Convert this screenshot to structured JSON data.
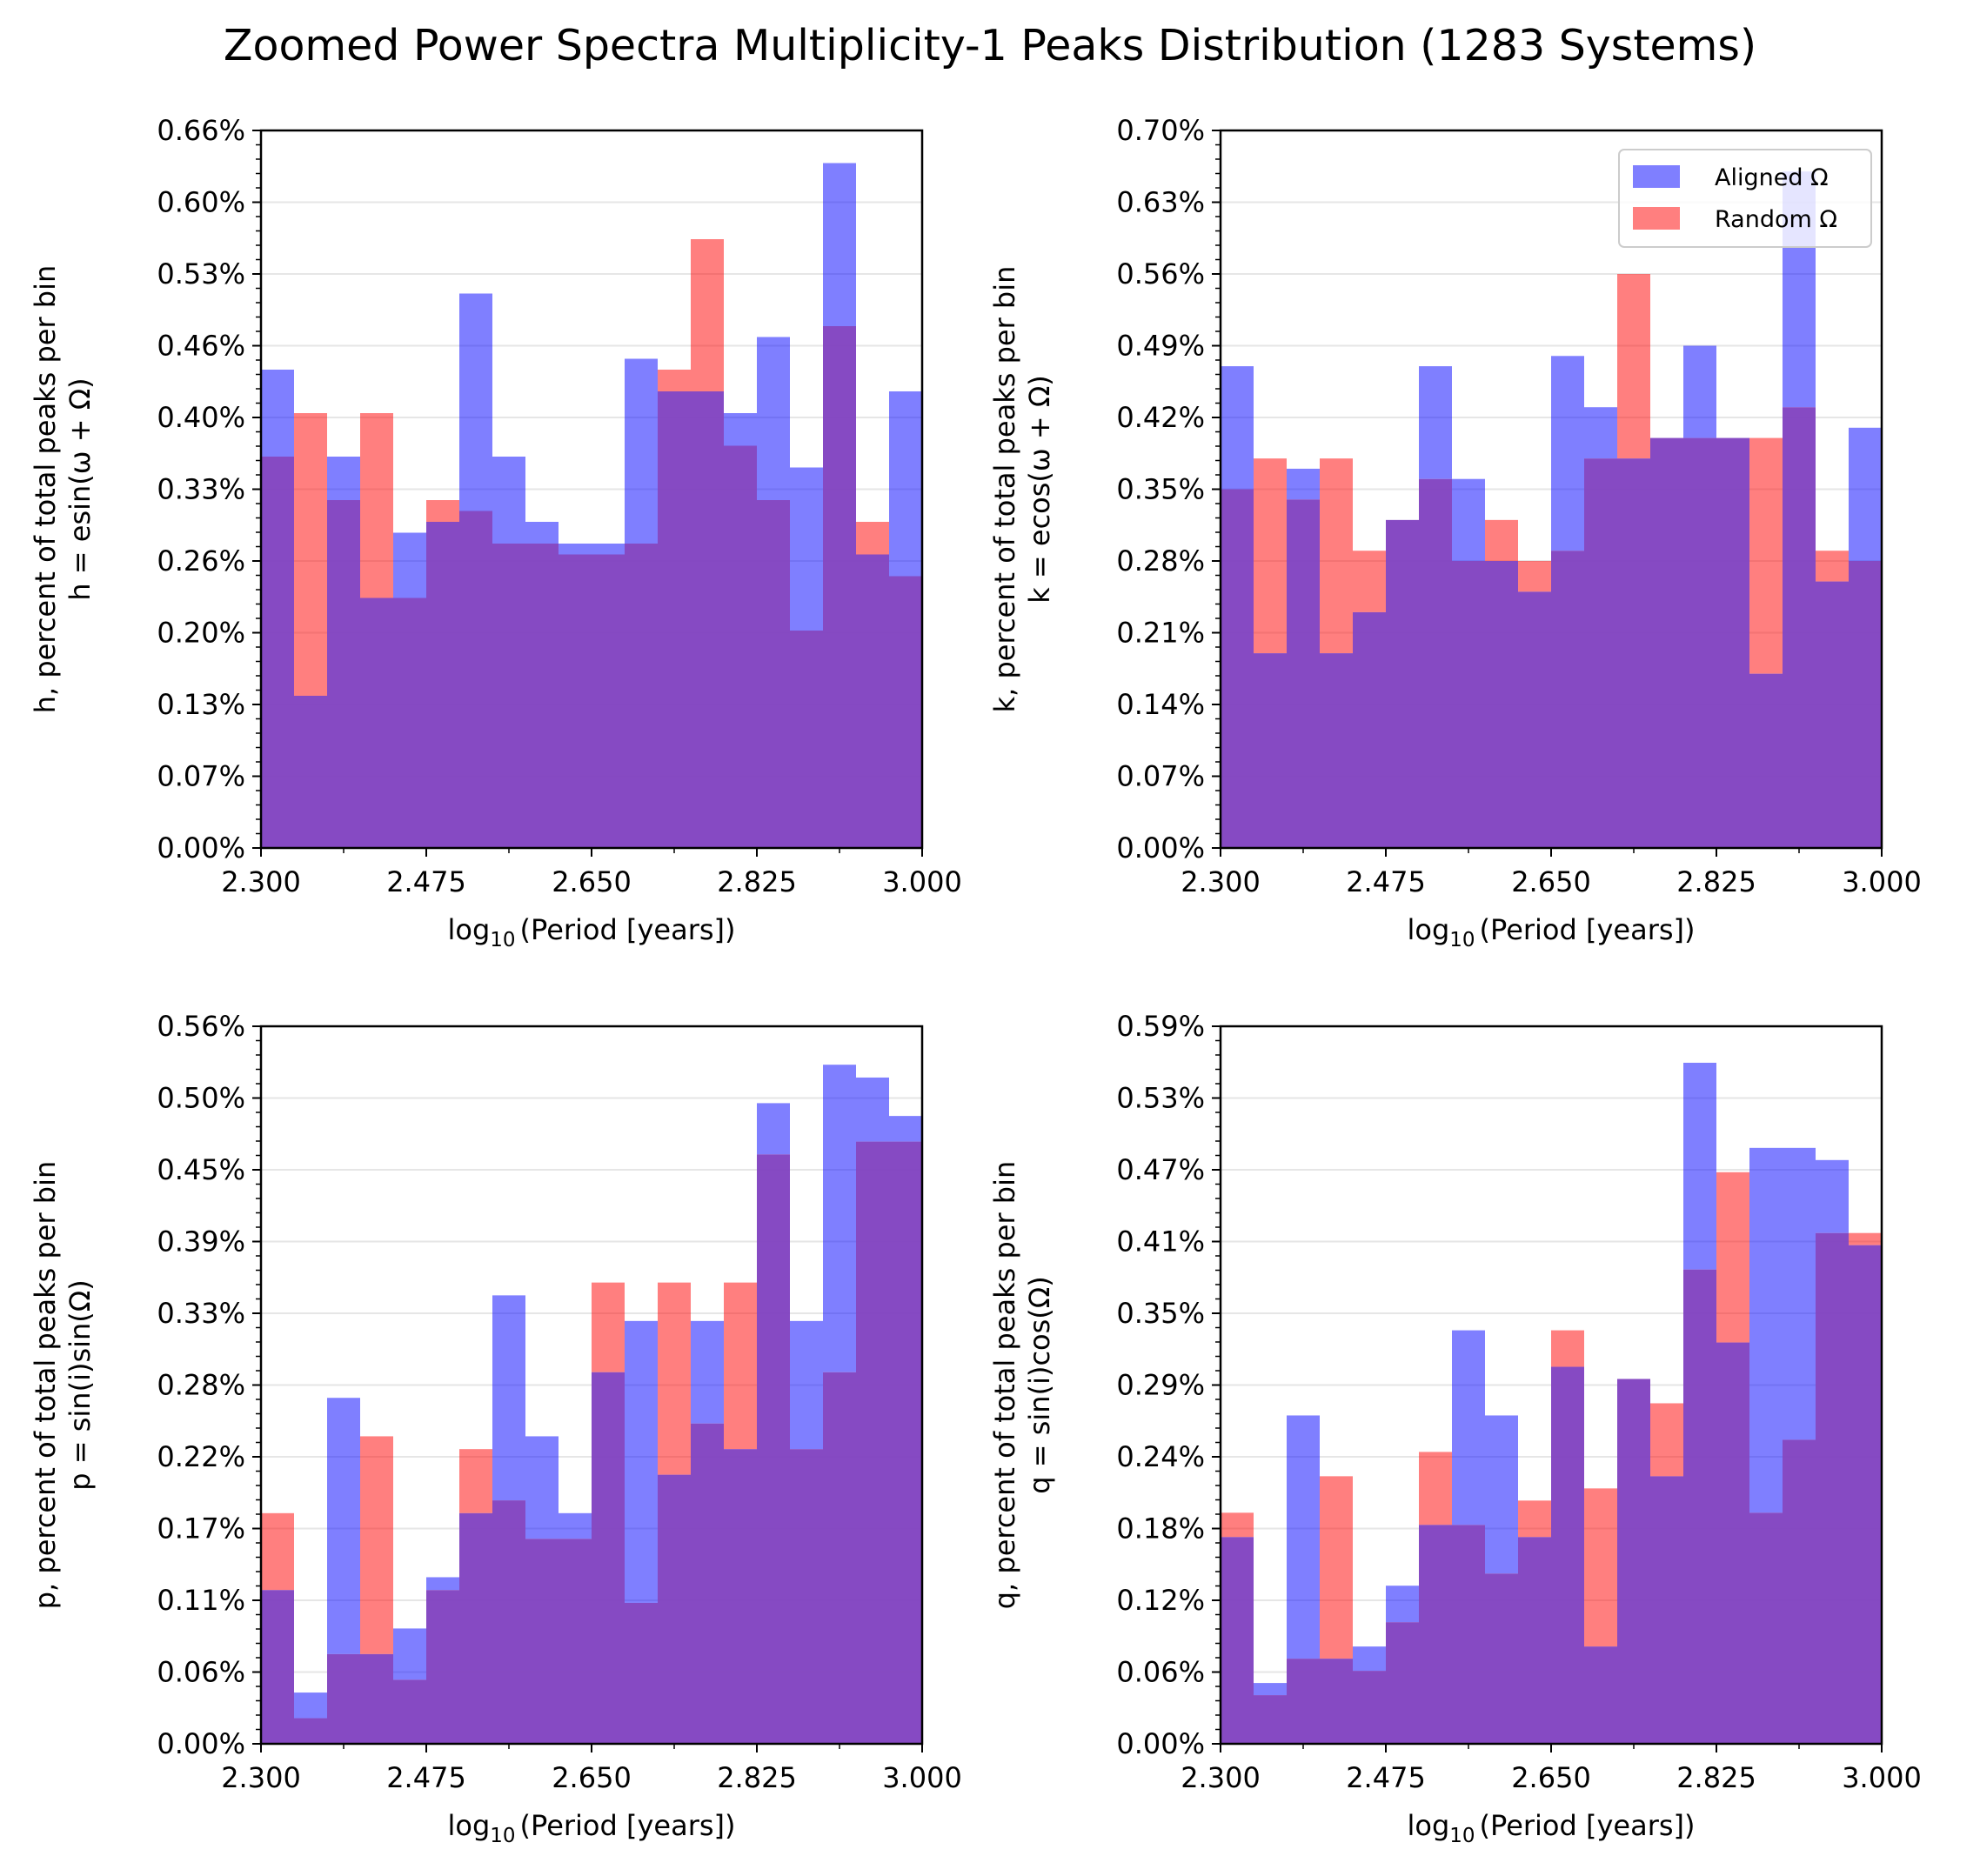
{
  "figure": {
    "title": "Zoomed Power Spectra Multiplicity-1 Peaks Distribution (1283 Systems)"
  },
  "colors": {
    "aligned": "#0000ff",
    "random": "#ff0000",
    "overlap": "#8040c0",
    "grid": "#e6e6e6"
  },
  "chart_data": [
    {
      "type": "bar",
      "panel": "top-left",
      "xlabel_prefix": "log",
      "xlabel_sub": "10",
      "xlabel_rest": "(Period [years])",
      "ylabel_line1": "h, percent of total peaks per bin",
      "ylabel_line2": "h = esin(ω + Ω)",
      "xlim": [
        2.3,
        3.0
      ],
      "xticks": [
        "2.300",
        "2.475",
        "2.650",
        "2.825",
        "3.000"
      ],
      "ylim": [
        0,
        0.66
      ],
      "yticks": [
        "0.00%",
        "0.07%",
        "0.13%",
        "0.20%",
        "0.26%",
        "0.33%",
        "0.40%",
        "0.46%",
        "0.53%",
        "0.60%",
        "0.66%"
      ],
      "grid": true,
      "bin_edges": [
        2.3,
        2.335,
        2.37,
        2.405,
        2.44,
        2.475,
        2.51,
        2.545,
        2.58,
        2.615,
        2.65,
        2.685,
        2.72,
        2.755,
        2.79,
        2.825,
        2.86,
        2.895,
        2.93,
        2.965,
        3.0
      ],
      "series": [
        {
          "name": "Aligned Ω",
          "values": [
            0.44,
            0.14,
            0.36,
            0.23,
            0.29,
            0.3,
            0.51,
            0.36,
            0.3,
            0.28,
            0.28,
            0.45,
            0.42,
            0.42,
            0.4,
            0.47,
            0.35,
            0.63,
            0.27,
            0.42
          ]
        },
        {
          "name": "Random Ω",
          "values": [
            0.36,
            0.4,
            0.32,
            0.4,
            0.23,
            0.32,
            0.31,
            0.28,
            0.28,
            0.27,
            0.27,
            0.28,
            0.44,
            0.56,
            0.37,
            0.32,
            0.2,
            0.48,
            0.3,
            0.25
          ]
        }
      ]
    },
    {
      "type": "bar",
      "panel": "top-right",
      "xlabel_prefix": "log",
      "xlabel_sub": "10",
      "xlabel_rest": "(Period [years])",
      "ylabel_line1": "k, percent of total peaks per bin",
      "ylabel_line2": "k = ecos(ω + Ω)",
      "xlim": [
        2.3,
        3.0
      ],
      "xticks": [
        "2.300",
        "2.475",
        "2.650",
        "2.825",
        "3.000"
      ],
      "ylim": [
        0,
        0.7
      ],
      "yticks": [
        "0.00%",
        "0.07%",
        "0.14%",
        "0.21%",
        "0.28%",
        "0.35%",
        "0.42%",
        "0.49%",
        "0.56%",
        "0.63%",
        "0.70%"
      ],
      "grid": true,
      "legend": "upper-right",
      "bin_edges": [
        2.3,
        2.335,
        2.37,
        2.405,
        2.44,
        2.475,
        2.51,
        2.545,
        2.58,
        2.615,
        2.65,
        2.685,
        2.72,
        2.755,
        2.79,
        2.825,
        2.86,
        2.895,
        2.93,
        2.965,
        3.0
      ],
      "series": [
        {
          "name": "Aligned Ω",
          "values": [
            0.47,
            0.19,
            0.37,
            0.19,
            0.23,
            0.32,
            0.47,
            0.36,
            0.28,
            0.25,
            0.48,
            0.43,
            0.38,
            0.4,
            0.49,
            0.4,
            0.17,
            0.66,
            0.26,
            0.41
          ]
        },
        {
          "name": "Random Ω",
          "values": [
            0.35,
            0.38,
            0.34,
            0.38,
            0.29,
            0.32,
            0.36,
            0.28,
            0.32,
            0.28,
            0.29,
            0.38,
            0.56,
            0.4,
            0.4,
            0.4,
            0.4,
            0.43,
            0.29,
            0.28
          ]
        }
      ]
    },
    {
      "type": "bar",
      "panel": "bottom-left",
      "xlabel_prefix": "log",
      "xlabel_sub": "10",
      "xlabel_rest": "(Period [years])",
      "ylabel_line1": "p, percent of total peaks per bin",
      "ylabel_line2": "p = sin(i)sin(Ω)",
      "xlim": [
        2.3,
        3.0
      ],
      "xticks": [
        "2.300",
        "2.475",
        "2.650",
        "2.825",
        "3.000"
      ],
      "ylim": [
        0,
        0.56
      ],
      "yticks": [
        "0.00%",
        "0.06%",
        "0.11%",
        "0.17%",
        "0.22%",
        "0.28%",
        "0.33%",
        "0.39%",
        "0.45%",
        "0.50%",
        "0.56%"
      ],
      "grid": true,
      "bin_edges": [
        2.3,
        2.335,
        2.37,
        2.405,
        2.44,
        2.475,
        2.51,
        2.545,
        2.58,
        2.615,
        2.65,
        2.685,
        2.72,
        2.755,
        2.79,
        2.825,
        2.86,
        2.895,
        2.93,
        2.965,
        3.0
      ],
      "series": [
        {
          "name": "Aligned Ω",
          "values": [
            0.12,
            0.04,
            0.27,
            0.07,
            0.09,
            0.13,
            0.18,
            0.35,
            0.24,
            0.18,
            0.29,
            0.33,
            0.21,
            0.33,
            0.23,
            0.5,
            0.33,
            0.53,
            0.52,
            0.49
          ]
        },
        {
          "name": "Random Ω",
          "values": [
            0.18,
            0.02,
            0.07,
            0.24,
            0.05,
            0.12,
            0.23,
            0.19,
            0.16,
            0.16,
            0.36,
            0.11,
            0.36,
            0.25,
            0.36,
            0.46,
            0.23,
            0.29,
            0.47,
            0.47
          ]
        }
      ]
    },
    {
      "type": "bar",
      "panel": "bottom-right",
      "xlabel_prefix": "log",
      "xlabel_sub": "10",
      "xlabel_rest": "(Period [years])",
      "ylabel_line1": "q, percent of total peaks per bin",
      "ylabel_line2": "q = sin(i)cos(Ω)",
      "xlim": [
        2.3,
        3.0
      ],
      "xticks": [
        "2.300",
        "2.475",
        "2.650",
        "2.825",
        "3.000"
      ],
      "ylim": [
        0,
        0.59
      ],
      "yticks": [
        "0.00%",
        "0.06%",
        "0.12%",
        "0.18%",
        "0.24%",
        "0.29%",
        "0.35%",
        "0.41%",
        "0.47%",
        "0.53%",
        "0.59%"
      ],
      "grid": true,
      "bin_edges": [
        2.3,
        2.335,
        2.37,
        2.405,
        2.44,
        2.475,
        2.51,
        2.545,
        2.58,
        2.615,
        2.65,
        2.685,
        2.72,
        2.755,
        2.79,
        2.825,
        2.86,
        2.895,
        2.93,
        2.965,
        3.0
      ],
      "series": [
        {
          "name": "Aligned Ω",
          "values": [
            0.17,
            0.05,
            0.27,
            0.07,
            0.08,
            0.13,
            0.18,
            0.34,
            0.27,
            0.17,
            0.31,
            0.08,
            0.3,
            0.22,
            0.56,
            0.33,
            0.49,
            0.49,
            0.48,
            0.41
          ]
        },
        {
          "name": "Random Ω",
          "values": [
            0.19,
            0.04,
            0.07,
            0.22,
            0.06,
            0.1,
            0.24,
            0.18,
            0.14,
            0.2,
            0.34,
            0.21,
            0.3,
            0.28,
            0.39,
            0.47,
            0.19,
            0.25,
            0.42,
            0.42
          ]
        }
      ]
    }
  ]
}
